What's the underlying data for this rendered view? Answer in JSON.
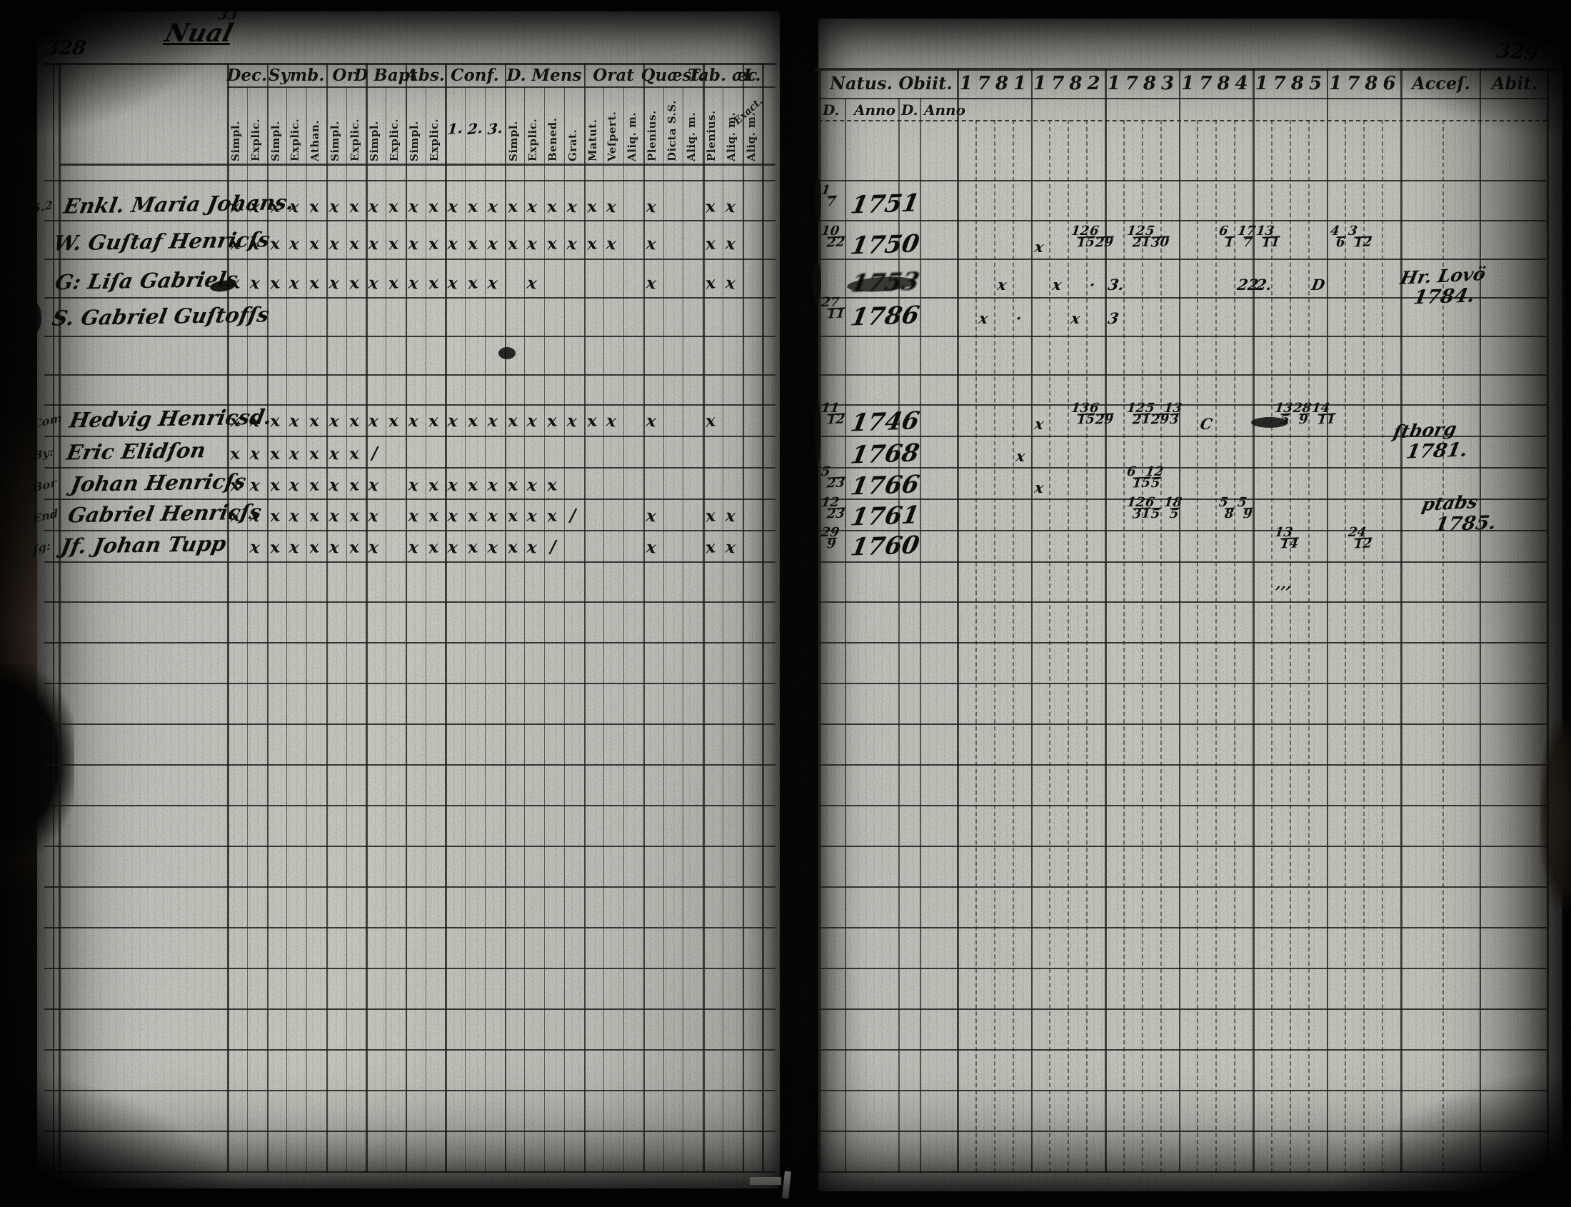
{
  "document": {
    "left_page_number": "328",
    "right_page_number": "329",
    "title_script": "Nual",
    "title_super": "33"
  },
  "left_table": {
    "groups": [
      {
        "label": "Dec.",
        "subs": [
          "Simpl.",
          "Explic."
        ]
      },
      {
        "label": "Symb.",
        "subs": [
          "Simpl.",
          "Explic.",
          "Athan."
        ]
      },
      {
        "label": "Or.",
        "subs": [
          "Simpl.",
          "Explic."
        ]
      },
      {
        "label": "D Bapt",
        "subs": [
          "Simpl.",
          "Explic."
        ]
      },
      {
        "label": "Abs.",
        "subs": [
          "Simpl.",
          "Explic."
        ]
      },
      {
        "label": "Conf.",
        "subs": [
          "1.",
          "2.",
          "3."
        ],
        "handwritten": true
      },
      {
        "label": "D. Mens",
        "subs": [
          "Simpl.",
          "Explic.",
          "Bened.",
          "Grat."
        ]
      },
      {
        "label": "Orat",
        "subs": [
          "Matut.",
          "Veſpert.",
          "Aliq. m."
        ]
      },
      {
        "label": "Quæst.",
        "subs": [
          "Plenius.",
          "Dicta S.S.",
          "Aliq. m."
        ]
      },
      {
        "label": "Tab. æc",
        "subs": [
          "Plenius.",
          "Aliq. m."
        ]
      },
      {
        "label": "L.",
        "subs": [
          "Aliq. m."
        ],
        "corner_note": "Exact."
      }
    ],
    "rows": [
      {
        "prefix": "Enkl.",
        "name": "Maria Johans.",
        "marks": [
          0,
          1,
          2,
          3,
          4,
          5,
          6,
          7,
          8,
          9,
          10,
          11,
          12,
          13,
          14,
          15,
          16,
          17,
          18,
          19,
          21,
          24,
          25
        ],
        "slashes": []
      },
      {
        "prefix": "W.",
        "name": "Guſtaf Henricſs",
        "marks": [
          0,
          1,
          2,
          3,
          4,
          5,
          6,
          7,
          8,
          9,
          10,
          11,
          12,
          13,
          14,
          15,
          16,
          17,
          18,
          19,
          21,
          24,
          25
        ],
        "slashes": []
      },
      {
        "prefix": "G:",
        "name": "Liſa Gabriels",
        "marks": [
          0,
          1,
          2,
          3,
          4,
          5,
          6,
          7,
          8,
          9,
          10,
          11,
          12,
          13,
          15,
          21,
          24,
          25
        ],
        "slashes": [],
        "blot": true
      },
      {
        "prefix": "S.",
        "name": "Gabriel Guſtofſs",
        "marks": [],
        "slashes": []
      },
      {
        "prefix": "",
        "name": "Hedvig Henricsd.",
        "marks": [
          0,
          1,
          2,
          3,
          4,
          5,
          6,
          7,
          8,
          9,
          10,
          11,
          12,
          13,
          14,
          15,
          16,
          17,
          18,
          19,
          21,
          24
        ],
        "slashes": []
      },
      {
        "prefix": "",
        "name": "Eric Elidſon",
        "marks": [
          0,
          1,
          2,
          3,
          4,
          5,
          6
        ],
        "slashes": [
          7
        ]
      },
      {
        "prefix": "",
        "name": "Johan Henricſs",
        "marks": [
          0,
          1,
          2,
          3,
          4,
          5,
          6,
          7,
          9,
          10,
          11,
          12,
          13,
          14,
          15,
          16
        ],
        "slashes": []
      },
      {
        "prefix": "",
        "name": "Gabriel Henricſs",
        "marks": [
          0,
          1,
          2,
          3,
          4,
          5,
          6,
          7,
          9,
          10,
          11,
          12,
          13,
          14,
          15,
          16,
          21,
          24,
          25
        ],
        "slashes": [
          17
        ]
      },
      {
        "prefix": "Jf.",
        "name": "Johan Tupp",
        "marks": [
          1,
          2,
          3,
          4,
          5,
          6,
          7,
          9,
          10,
          11,
          12,
          13,
          14,
          15,
          21,
          24,
          25
        ],
        "slashes": [
          16
        ]
      }
    ],
    "margin_codes": [
      {
        "row": 0,
        "text": "5.2"
      },
      {
        "row": 4,
        "text": "Com"
      },
      {
        "row": 5,
        "text": "By:"
      },
      {
        "row": 6,
        "text": "Bor"
      },
      {
        "row": 7,
        "text": "End"
      },
      {
        "row": 8,
        "text": "Jg:"
      }
    ]
  },
  "right_table": {
    "header": {
      "natus": "Natus.",
      "obiit": "Obiit.",
      "years": [
        "1781",
        "1782",
        "1783",
        "1784",
        "1785",
        "1786"
      ],
      "acces": "Acceſ.",
      "abit": "Abit.",
      "sub_labels": [
        "D.",
        "Anno",
        "D.",
        "Anno"
      ]
    },
    "rows": [
      {
        "d": "1/7",
        "anno": "1751",
        "cells": []
      },
      {
        "d": "10/22",
        "anno": "1750",
        "cells": [
          {
            "y": 1,
            "s": 0,
            "t": "x"
          },
          {
            "y": 1,
            "s": 2,
            "f": "12/15"
          },
          {
            "y": 1,
            "s": 3,
            "f": "6/29"
          },
          {
            "y": 2,
            "s": 1,
            "f": "12/21"
          },
          {
            "y": 2,
            "s": 2,
            "f": "5/30"
          },
          {
            "y": 3,
            "s": 2,
            "f": "6/1"
          },
          {
            "y": 3,
            "s": 3,
            "f": "17/7"
          },
          {
            "y": 4,
            "s": 0,
            "f": "13/11"
          },
          {
            "y": 5,
            "s": 0,
            "f": "4/6"
          },
          {
            "y": 5,
            "s": 1,
            "f": "3/12"
          }
        ]
      },
      {
        "d": "",
        "anno": "1753",
        "blot": true,
        "cells": [
          {
            "y": 0,
            "s": 2,
            "t": "x"
          },
          {
            "y": 1,
            "s": 1,
            "t": "x"
          },
          {
            "y": 1,
            "s": 3,
            "t": "·"
          },
          {
            "y": 2,
            "s": 0,
            "t": "3."
          },
          {
            "y": 3,
            "s": 3,
            "t": "22."
          },
          {
            "y": 4,
            "s": 0,
            "t": "2."
          },
          {
            "y": 4,
            "s": 3,
            "t": "D"
          }
        ]
      },
      {
        "d": "27/11",
        "anno": "1786",
        "cells": [
          {
            "y": 0,
            "s": 1,
            "t": "x"
          },
          {
            "y": 0,
            "s": 3,
            "t": "·"
          },
          {
            "y": 1,
            "s": 2,
            "t": "x"
          },
          {
            "y": 2,
            "s": 0,
            "t": "3"
          }
        ]
      },
      {
        "d": "11/12",
        "anno": "1746",
        "cells": [
          {
            "y": 1,
            "s": 0,
            "t": "x"
          },
          {
            "y": 1,
            "s": 2,
            "f": "13/15"
          },
          {
            "y": 1,
            "s": 3,
            "f": "6/29"
          },
          {
            "y": 2,
            "s": 1,
            "f": "12/21"
          },
          {
            "y": 2,
            "s": 2,
            "f": "5/29"
          },
          {
            "y": 2,
            "s": 3,
            "f": "13/3"
          },
          {
            "y": 3,
            "s": 1,
            "t": "C"
          },
          {
            "y": 4,
            "s": 1,
            "f": "13/5"
          },
          {
            "y": 4,
            "s": 2,
            "f": "28/9"
          },
          {
            "y": 4,
            "s": 3,
            "f": "14/11"
          }
        ]
      },
      {
        "d": "",
        "anno": "1768",
        "cells": [
          {
            "y": 0,
            "s": 3,
            "t": "x"
          }
        ]
      },
      {
        "d": "5/23",
        "anno": "1766",
        "cells": [
          {
            "y": 1,
            "s": 0,
            "t": "x"
          },
          {
            "y": 2,
            "s": 1,
            "f": "6/15"
          },
          {
            "y": 2,
            "s": 2,
            "f": "12/5"
          }
        ]
      },
      {
        "d": "12/23",
        "anno": "1761",
        "cells": [
          {
            "y": 2,
            "s": 1,
            "f": "12/31"
          },
          {
            "y": 2,
            "s": 2,
            "f": "6/5"
          },
          {
            "y": 2,
            "s": 3,
            "f": "18/5"
          },
          {
            "y": 3,
            "s": 2,
            "f": "5/8"
          },
          {
            "y": 3,
            "s": 3,
            "f": "5/9"
          }
        ]
      },
      {
        "d": "29/9",
        "anno": "1760",
        "cells": [
          {
            "y": 4,
            "s": 1,
            "f": "13/14"
          },
          {
            "y": 5,
            "s": 1,
            "f": "24/12"
          }
        ]
      },
      {
        "d": "",
        "anno": "",
        "cells": [
          {
            "y": 4,
            "s": 1,
            "t": "’’’"
          }
        ]
      }
    ],
    "margin_notes": [
      {
        "row": 2,
        "lines": [
          "Hr. Lovö",
          "1784."
        ]
      },
      {
        "row": 5,
        "lines": [
          "ſtborg",
          "1781."
        ]
      },
      {
        "row": 7,
        "lines": [
          "ptabs",
          "1785."
        ]
      }
    ]
  }
}
